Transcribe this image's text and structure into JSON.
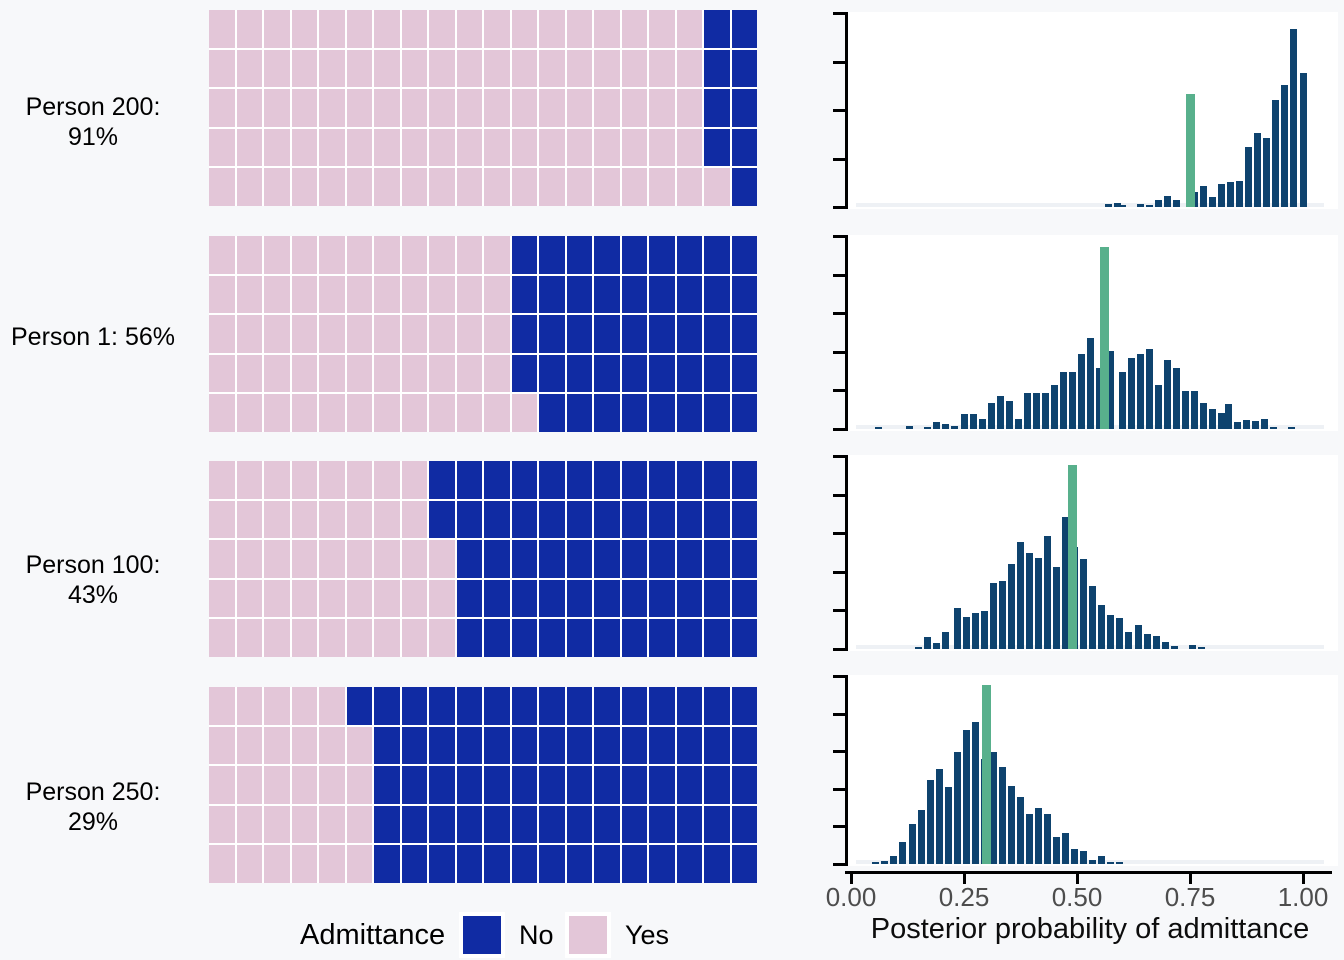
{
  "figure": {
    "background": "#f7f8fa",
    "panel_background": "#ffffff",
    "colors": {
      "no": "#102ba3",
      "yes": "#e3c6d8",
      "hist_bar": "#0e436e",
      "marker": "#58b08c",
      "strip": "#eef1f5",
      "axis_line": "#000000",
      "tick_label": "#4d4d4d",
      "axis_title": "#0d0d0d",
      "row_label": "#000000"
    }
  },
  "legend": {
    "title": "Admittance",
    "items": [
      {
        "label": "No",
        "color_key": "no"
      },
      {
        "label": "Yes",
        "color_key": "yes"
      }
    ]
  },
  "x_axis": {
    "title": "Posterior probability of admittance",
    "tick_labels": [
      "0.00",
      "0.25",
      "0.50",
      "0.75",
      "1.00"
    ],
    "tick_values": [
      0,
      0.25,
      0.5,
      0.75,
      1
    ]
  },
  "chart_data": {
    "type": "small_multiples",
    "description": "Four people. Left: 5x20 waffle chart of admittance (100 cells, Yes=pink fills columns left-to-right bottom-up, No=navy). Right: histogram of posterior probability of admittance with a green vertical marker bar.",
    "x_range": [
      0,
      1
    ],
    "bars_format": "[bin_center_probability, relative_height_0_to_1]",
    "rows": [
      {
        "row_label": "Person 200: 91%",
        "person": "Person 200",
        "yes_percent": 91,
        "waffle": {
          "type": "waffle",
          "grid_rows": 5,
          "grid_cols": 20,
          "yes_cells": 91,
          "no_cells": 9
        },
        "histogram": {
          "type": "bar",
          "y_axis_tick_count": 5,
          "marker_x": 0.75,
          "marker_rel_height": 0.59,
          "bars": [
            [
              0.57,
              0.015
            ],
            [
              0.59,
              0.02
            ],
            [
              0.6,
              0.008
            ],
            [
              0.64,
              0.016
            ],
            [
              0.66,
              0.011
            ],
            [
              0.68,
              0.035
            ],
            [
              0.7,
              0.06
            ],
            [
              0.72,
              0.035
            ],
            [
              0.76,
              0.08
            ],
            [
              0.78,
              0.112
            ],
            [
              0.8,
              0.054
            ],
            [
              0.82,
              0.122
            ],
            [
              0.84,
              0.132
            ],
            [
              0.86,
              0.137
            ],
            [
              0.88,
              0.313
            ],
            [
              0.9,
              0.388
            ],
            [
              0.92,
              0.362
            ],
            [
              0.94,
              0.558
            ],
            [
              0.96,
              0.64
            ],
            [
              0.98,
              0.934
            ],
            [
              1.0,
              0.7
            ]
          ]
        }
      },
      {
        "row_label": "Person 1: 56%",
        "person": "Person 1",
        "yes_percent": 56,
        "waffle": {
          "type": "waffle",
          "grid_rows": 5,
          "grid_cols": 20,
          "yes_cells": 56,
          "no_cells": 44
        },
        "histogram": {
          "type": "bar",
          "y_axis_tick_count": 6,
          "marker_x": 0.56,
          "marker_rel_height": 0.96,
          "bars": [
            [
              0.06,
              0.009
            ],
            [
              0.13,
              0.018
            ],
            [
              0.17,
              0.009
            ],
            [
              0.19,
              0.038
            ],
            [
              0.21,
              0.026
            ],
            [
              0.23,
              0.014
            ],
            [
              0.25,
              0.078
            ],
            [
              0.27,
              0.078
            ],
            [
              0.29,
              0.055
            ],
            [
              0.31,
              0.135
            ],
            [
              0.33,
              0.173
            ],
            [
              0.35,
              0.147
            ],
            [
              0.37,
              0.055
            ],
            [
              0.39,
              0.187
            ],
            [
              0.41,
              0.187
            ],
            [
              0.43,
              0.19
            ],
            [
              0.45,
              0.233
            ],
            [
              0.47,
              0.302
            ],
            [
              0.49,
              0.302
            ],
            [
              0.51,
              0.394
            ],
            [
              0.53,
              0.48
            ],
            [
              0.55,
              0.32
            ],
            [
              0.575,
              0.411
            ],
            [
              0.6,
              0.302
            ],
            [
              0.62,
              0.372
            ],
            [
              0.64,
              0.394
            ],
            [
              0.66,
              0.423
            ],
            [
              0.68,
              0.233
            ],
            [
              0.7,
              0.363
            ],
            [
              0.72,
              0.32
            ],
            [
              0.74,
              0.199
            ],
            [
              0.76,
              0.199
            ],
            [
              0.78,
              0.138
            ],
            [
              0.8,
              0.104
            ],
            [
              0.82,
              0.086
            ],
            [
              0.835,
              0.13
            ],
            [
              0.855,
              0.035
            ],
            [
              0.875,
              0.048
            ],
            [
              0.895,
              0.043
            ],
            [
              0.915,
              0.055
            ],
            [
              0.935,
              0.009
            ],
            [
              0.975,
              0.009
            ]
          ]
        }
      },
      {
        "row_label": "Person 100: 43%",
        "person": "Person 100",
        "yes_percent": 43,
        "waffle": {
          "type": "waffle",
          "grid_rows": 5,
          "grid_cols": 20,
          "yes_cells": 43,
          "no_cells": 57
        },
        "histogram": {
          "type": "bar",
          "y_axis_tick_count": 6,
          "marker_x": 0.49,
          "marker_rel_height": 0.97,
          "bars": [
            [
              0.15,
              0.009
            ],
            [
              0.17,
              0.063
            ],
            [
              0.19,
              0.032
            ],
            [
              0.21,
              0.089
            ],
            [
              0.235,
              0.214
            ],
            [
              0.255,
              0.17
            ],
            [
              0.275,
              0.188
            ],
            [
              0.295,
              0.2
            ],
            [
              0.315,
              0.348
            ],
            [
              0.335,
              0.357
            ],
            [
              0.355,
              0.446
            ],
            [
              0.375,
              0.563
            ],
            [
              0.395,
              0.504
            ],
            [
              0.415,
              0.479
            ],
            [
              0.435,
              0.593
            ],
            [
              0.455,
              0.429
            ],
            [
              0.475,
              0.693
            ],
            [
              0.495,
              0.536
            ],
            [
              0.515,
              0.473
            ],
            [
              0.535,
              0.33
            ],
            [
              0.555,
              0.232
            ],
            [
              0.575,
              0.179
            ],
            [
              0.595,
              0.164
            ],
            [
              0.615,
              0.089
            ],
            [
              0.635,
              0.125
            ],
            [
              0.655,
              0.08
            ],
            [
              0.675,
              0.071
            ],
            [
              0.695,
              0.039
            ],
            [
              0.715,
              0.014
            ],
            [
              0.755,
              0.021
            ],
            [
              0.775,
              0.009
            ]
          ]
        }
      },
      {
        "row_label": "Person 250: 29%",
        "person": "Person 250",
        "yes_percent": 29,
        "waffle": {
          "type": "waffle",
          "grid_rows": 5,
          "grid_cols": 20,
          "yes_cells": 29,
          "no_cells": 71
        },
        "histogram": {
          "type": "bar",
          "y_axis_tick_count": 6,
          "marker_x": 0.3,
          "marker_rel_height": 0.97,
          "bars": [
            [
              0.055,
              0.009
            ],
            [
              0.075,
              0.014
            ],
            [
              0.095,
              0.045
            ],
            [
              0.115,
              0.118
            ],
            [
              0.135,
              0.217
            ],
            [
              0.155,
              0.29
            ],
            [
              0.175,
              0.453
            ],
            [
              0.195,
              0.516
            ],
            [
              0.215,
              0.417
            ],
            [
              0.235,
              0.607
            ],
            [
              0.255,
              0.725
            ],
            [
              0.275,
              0.77
            ],
            [
              0.295,
              0.567
            ],
            [
              0.315,
              0.607
            ],
            [
              0.335,
              0.525
            ],
            [
              0.355,
              0.422
            ],
            [
              0.375,
              0.362
            ],
            [
              0.395,
              0.272
            ],
            [
              0.415,
              0.304
            ],
            [
              0.435,
              0.268
            ],
            [
              0.455,
              0.145
            ],
            [
              0.475,
              0.167
            ],
            [
              0.495,
              0.082
            ],
            [
              0.515,
              0.069
            ],
            [
              0.535,
              0.022
            ],
            [
              0.555,
              0.045
            ],
            [
              0.575,
              0.011
            ],
            [
              0.595,
              0.009
            ]
          ]
        }
      }
    ]
  }
}
